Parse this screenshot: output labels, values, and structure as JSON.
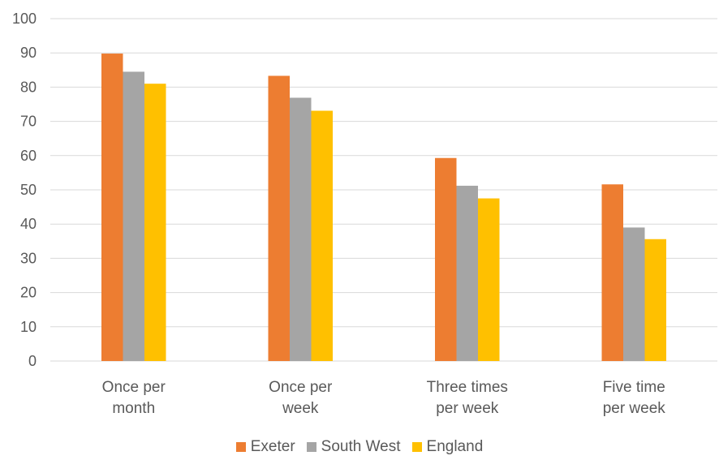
{
  "chart_data": {
    "type": "bar",
    "title": "",
    "xlabel": "",
    "ylabel": "",
    "ylim": [
      0,
      100
    ],
    "yticks": [
      0,
      10,
      20,
      30,
      40,
      50,
      60,
      70,
      80,
      90,
      100
    ],
    "grid": true,
    "legend_position": "bottom",
    "categories": [
      [
        "Once per",
        "month"
      ],
      [
        "Once per",
        "week"
      ],
      [
        "Three times",
        "per week"
      ],
      [
        "Five time",
        "per week"
      ]
    ],
    "series": [
      {
        "name": "Exeter",
        "color": "#ED7D31",
        "values": [
          89.8,
          83.3,
          59.3,
          51.6
        ]
      },
      {
        "name": "South West",
        "color": "#A5A5A5",
        "values": [
          84.5,
          76.9,
          51.2,
          39.0
        ]
      },
      {
        "name": "England",
        "color": "#FFC000",
        "values": [
          81.0,
          73.1,
          47.5,
          35.6
        ]
      }
    ]
  }
}
